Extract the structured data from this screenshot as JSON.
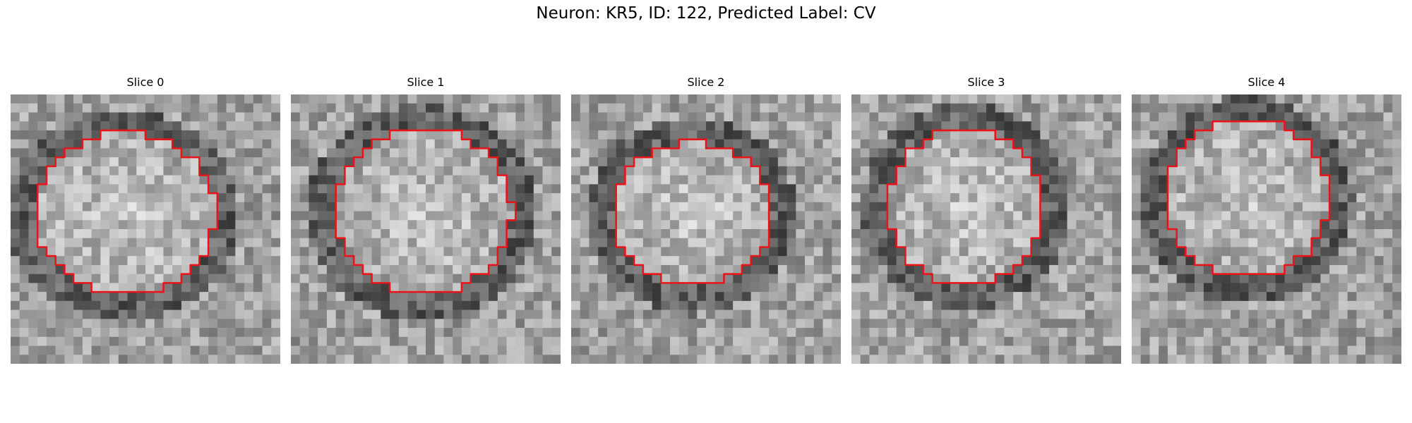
{
  "figure": {
    "title": "Neuron: KR5, ID: 122, Predicted Label: CV",
    "contour_color": "#e8141a",
    "colormap": "grayscale",
    "panels": [
      {
        "title": "Slice 0",
        "seed": 11,
        "blob": {
          "cx": 12.8,
          "cy": 13.2,
          "rx": 10.0,
          "ry": 9.0
        },
        "ring": {
          "cx": 12.5,
          "cy": 13.5,
          "rx": 12.3,
          "ry": 11.3
        }
      },
      {
        "title": "Slice 1",
        "seed": 23,
        "blob": {
          "cx": 14.8,
          "cy": 13.0,
          "rx": 9.8,
          "ry": 9.2
        },
        "ring": {
          "cx": 14.5,
          "cy": 13.3,
          "rx": 12.2,
          "ry": 11.4
        }
      },
      {
        "title": "Slice 2",
        "seed": 37,
        "blob": {
          "cx": 13.5,
          "cy": 13.3,
          "rx": 8.8,
          "ry": 8.0
        },
        "ring": {
          "cx": 13.5,
          "cy": 13.5,
          "rx": 11.2,
          "ry": 10.5
        }
      },
      {
        "title": "Slice 3",
        "seed": 41,
        "blob": {
          "cx": 12.7,
          "cy": 12.5,
          "rx": 8.5,
          "ry": 8.8
        },
        "ring": {
          "cx": 12.7,
          "cy": 12.5,
          "rx": 11.0,
          "ry": 11.0
        }
      },
      {
        "title": "Slice 4",
        "seed": 59,
        "blob": {
          "cx": 12.8,
          "cy": 11.5,
          "rx": 9.0,
          "ry": 9.0
        },
        "ring": {
          "cx": 12.8,
          "cy": 11.8,
          "rx": 11.3,
          "ry": 11.0
        }
      }
    ]
  }
}
